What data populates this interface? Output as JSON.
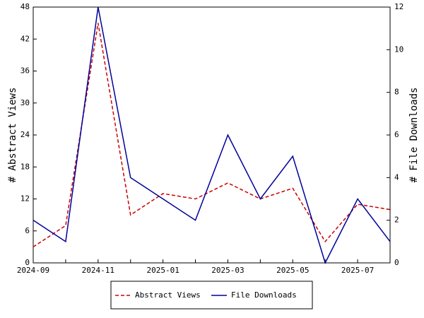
{
  "chart_data": {
    "type": "line",
    "y_label": "# Abstract Views",
    "y2_label": "# File Downloads",
    "categories": [
      "2024-09",
      null,
      "2024-11",
      null,
      "2025-01",
      null,
      "2025-03",
      null,
      "2025-05",
      null,
      "2025-07",
      null
    ],
    "series": [
      {
        "name": "Abstract Views",
        "color": "#cc0000",
        "dashed": true,
        "axis": "y",
        "values": [
          3,
          7,
          45,
          9,
          13,
          12,
          15,
          12,
          14,
          4,
          11,
          10
        ]
      },
      {
        "name": "File Downloads",
        "color": "#000099",
        "dashed": false,
        "axis": "y2",
        "values": [
          2,
          1,
          12,
          4,
          3,
          2,
          6,
          3,
          5,
          0,
          3,
          1
        ]
      }
    ],
    "ylim": [
      0,
      48
    ],
    "yticks": [
      0,
      6,
      12,
      18,
      24,
      30,
      36,
      42,
      48
    ],
    "y2lim": [
      0,
      12
    ],
    "y2ticks": [
      0,
      2,
      4,
      6,
      8,
      10,
      12
    ],
    "legend": "bottom",
    "grid": false
  }
}
